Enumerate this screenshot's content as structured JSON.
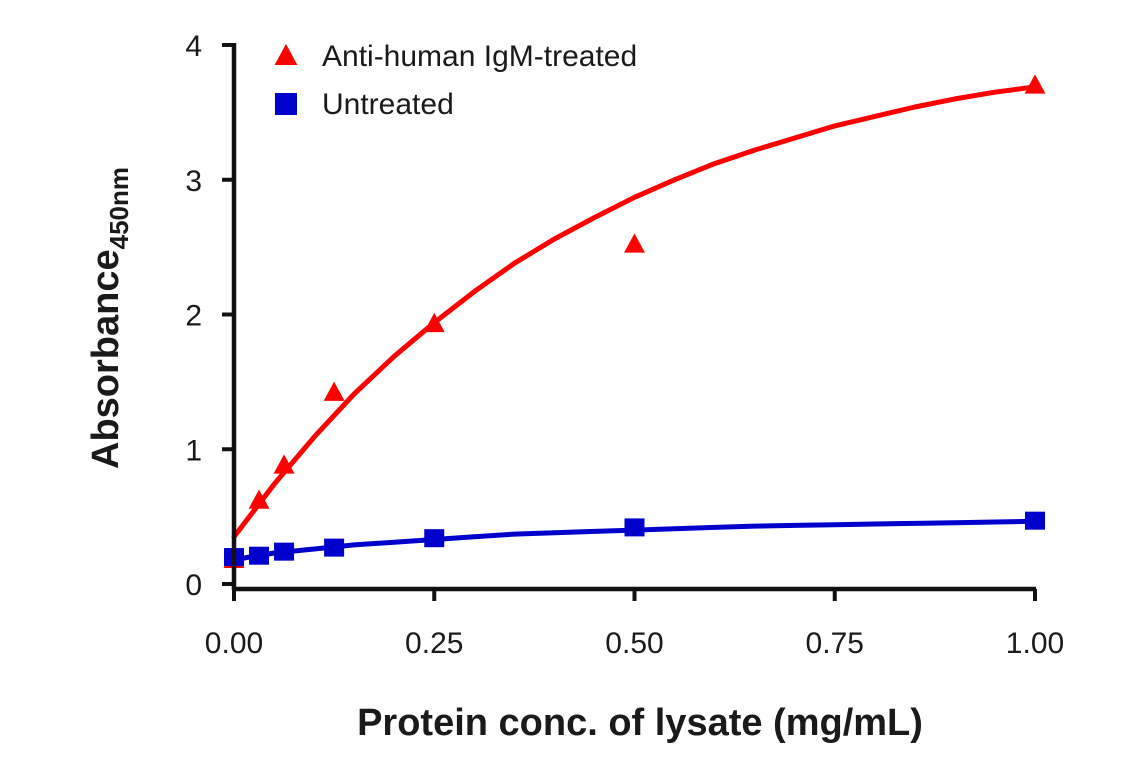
{
  "chart_data": {
    "type": "scatter",
    "title": "",
    "xlabel": "Protein conc. of lysate (mg/mL)",
    "ylabel_main": "Absorbance",
    "ylabel_sub": "450nm",
    "xlim": [
      0,
      1.0
    ],
    "ylim": [
      0,
      4
    ],
    "x_ticks": [
      0,
      0.25,
      0.5,
      0.75,
      1.0
    ],
    "x_tick_labels": [
      "0.00",
      "0.25",
      "0.50",
      "0.75",
      "1.00"
    ],
    "y_ticks": [
      0,
      1,
      2,
      3,
      4
    ],
    "y_tick_labels": [
      "0",
      "1",
      "2",
      "3",
      "4"
    ],
    "legend_position": "top-left",
    "series": [
      {
        "name": "Anti-human IgM-treated",
        "color": "#ff0000",
        "marker": "triangle",
        "x": [
          0,
          0.03125,
          0.0625,
          0.125,
          0.25,
          0.5,
          1.0
        ],
        "y": [
          0.18,
          0.62,
          0.88,
          1.42,
          1.93,
          2.52,
          3.7
        ],
        "fit_x": [
          0,
          0.05,
          0.1,
          0.15,
          0.2,
          0.25,
          0.3,
          0.35,
          0.4,
          0.45,
          0.5,
          0.55,
          0.6,
          0.65,
          0.7,
          0.75,
          0.8,
          0.85,
          0.9,
          0.95,
          1.0
        ],
        "fit_y": [
          0.35,
          0.74,
          1.09,
          1.41,
          1.69,
          1.94,
          2.17,
          2.38,
          2.56,
          2.72,
          2.87,
          3.0,
          3.12,
          3.22,
          3.31,
          3.4,
          3.47,
          3.54,
          3.6,
          3.65,
          3.69
        ]
      },
      {
        "name": "Untreated",
        "color": "#0000cc",
        "marker": "square",
        "x": [
          0,
          0.03125,
          0.0625,
          0.125,
          0.25,
          0.5,
          1.0
        ],
        "y": [
          0.2,
          0.21,
          0.24,
          0.27,
          0.34,
          0.42,
          0.47
        ],
        "fit_x": [
          0,
          0.05,
          0.1,
          0.15,
          0.2,
          0.25,
          0.3,
          0.35,
          0.4,
          0.45,
          0.5,
          0.55,
          0.6,
          0.65,
          0.7,
          0.75,
          0.8,
          0.85,
          0.9,
          0.95,
          1.0
        ],
        "fit_y": [
          0.18,
          0.23,
          0.26,
          0.29,
          0.31,
          0.33,
          0.35,
          0.37,
          0.38,
          0.39,
          0.4,
          0.41,
          0.42,
          0.43,
          0.435,
          0.44,
          0.445,
          0.45,
          0.455,
          0.46,
          0.465
        ]
      }
    ]
  }
}
